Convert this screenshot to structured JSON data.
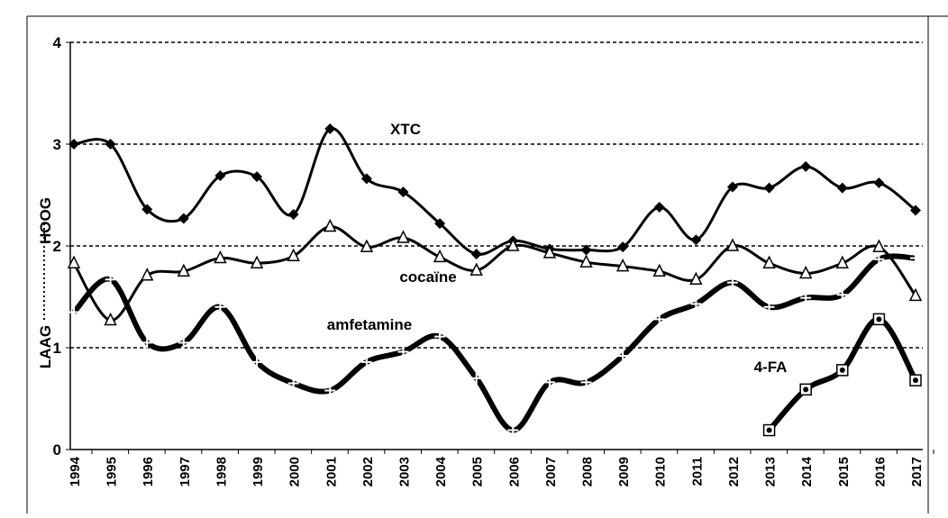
{
  "chart_data": {
    "type": "line",
    "categories": [
      "1994",
      "1995",
      "1996",
      "1997",
      "1998",
      "1999",
      "2000",
      "2001",
      "2002",
      "2003",
      "2004",
      "2005",
      "2006",
      "2007",
      "2008",
      "2009",
      "2010",
      "2011",
      "2012",
      "2013",
      "2014",
      "2015",
      "2016",
      "2017"
    ],
    "series": [
      {
        "name": "XTC",
        "color": "#000000",
        "marker": "diamond",
        "width": 3,
        "values": [
          3.0,
          3.0,
          2.36,
          2.27,
          2.69,
          2.68,
          2.31,
          3.15,
          2.66,
          2.53,
          2.22,
          1.92,
          2.05,
          1.97,
          1.96,
          1.99,
          2.38,
          2.06,
          2.58,
          2.57,
          2.78,
          2.57,
          2.62,
          2.35
        ]
      },
      {
        "name": "cocaïne",
        "color": "#000000",
        "marker": "triangle",
        "width": 3,
        "values": [
          1.83,
          1.27,
          1.71,
          1.75,
          1.88,
          1.83,
          1.9,
          2.19,
          1.99,
          2.08,
          1.89,
          1.76,
          2.0,
          1.93,
          1.84,
          1.8,
          1.75,
          1.67,
          2.0,
          1.83,
          1.73,
          1.83,
          1.99,
          1.51
        ]
      },
      {
        "name": "amfetamine",
        "color": "#000000",
        "marker": "plus",
        "width": 6,
        "values": [
          1.35,
          1.67,
          1.05,
          1.05,
          1.4,
          0.86,
          0.65,
          0.58,
          0.86,
          0.96,
          1.11,
          0.7,
          0.19,
          0.66,
          0.66,
          0.92,
          1.28,
          1.43,
          1.64,
          1.4,
          1.49,
          1.52,
          1.87,
          1.88
        ]
      },
      {
        "name": "4-FA",
        "color": "#000000",
        "marker": "square",
        "width": 6,
        "values": [
          null,
          null,
          null,
          null,
          null,
          null,
          null,
          null,
          null,
          null,
          null,
          null,
          null,
          null,
          null,
          null,
          null,
          null,
          null,
          0.19,
          0.59,
          0.78,
          1.28,
          0.68
        ]
      }
    ],
    "ylabel_low": "LAAG",
    "ylabel_high": "HOOG",
    "ylim": [
      0,
      4
    ],
    "yticks": [
      0,
      1,
      2,
      3,
      4
    ],
    "grid": true
  }
}
